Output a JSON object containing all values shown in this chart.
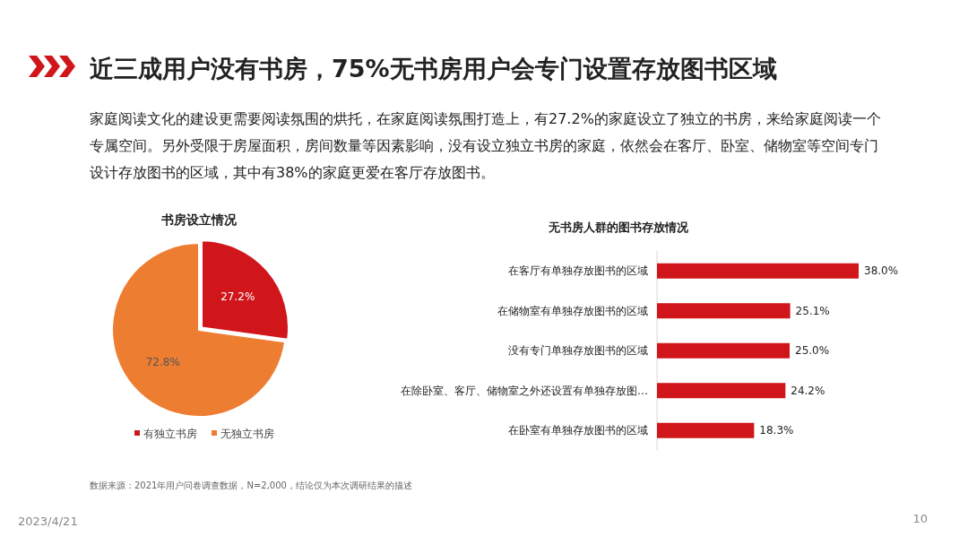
{
  "chart_data": [
    {
      "type": "other",
      "title": "近三成用户没有书房，75%无书房用户会专门设置存放图书区域",
      "subtitle": "家庭阅读文化的建设更需要阅读氛围的烘托，在家庭阅读氛围打造上，有27.2%的家庭设立了独立的书房，来给家庭阅读一个专属空间。另外受限于房屋面积，房间数量等因素影响，没有设立独立书房的家庭，依然会在客厅、卧室、储物室等空间专门设计存放图书的区域，其中有38%的家庭更爱在客厅存放图书。",
      "annotations": [
        "数据来源：2021年用户问卷调查数据，N=2,000，结论仅为本次调研结果的描述",
        "2023/4/21",
        "10"
      ]
    },
    {
      "type": "pie",
      "title": "书房设立情况",
      "categories": [
        "有独立书房",
        "无独立书房"
      ],
      "values": [
        27.2,
        72.8
      ],
      "colors": [
        "#d0161b",
        "#ed7d31"
      ],
      "value_labels": [
        "27.2%",
        "72.8%"
      ],
      "legend": "bottom"
    },
    {
      "type": "bar",
      "orientation": "horizontal",
      "title": "无书房人群的图书存放情况",
      "categories": [
        "在客厅有单独存放图书的区域",
        "在储物室有单独存放图书的区域",
        "没有专门单独存放图书的区域",
        "在除卧室、客厅、储物室之外还设置有单独存放图…",
        "在卧室有单独存放图书的区域"
      ],
      "values": [
        38.0,
        25.1,
        25.0,
        24.2,
        18.3
      ],
      "color": "#d0161b",
      "value_labels": [
        "38.0%",
        "25.1%",
        "25.0%",
        "24.2%",
        "18.3%"
      ]
    }
  ]
}
